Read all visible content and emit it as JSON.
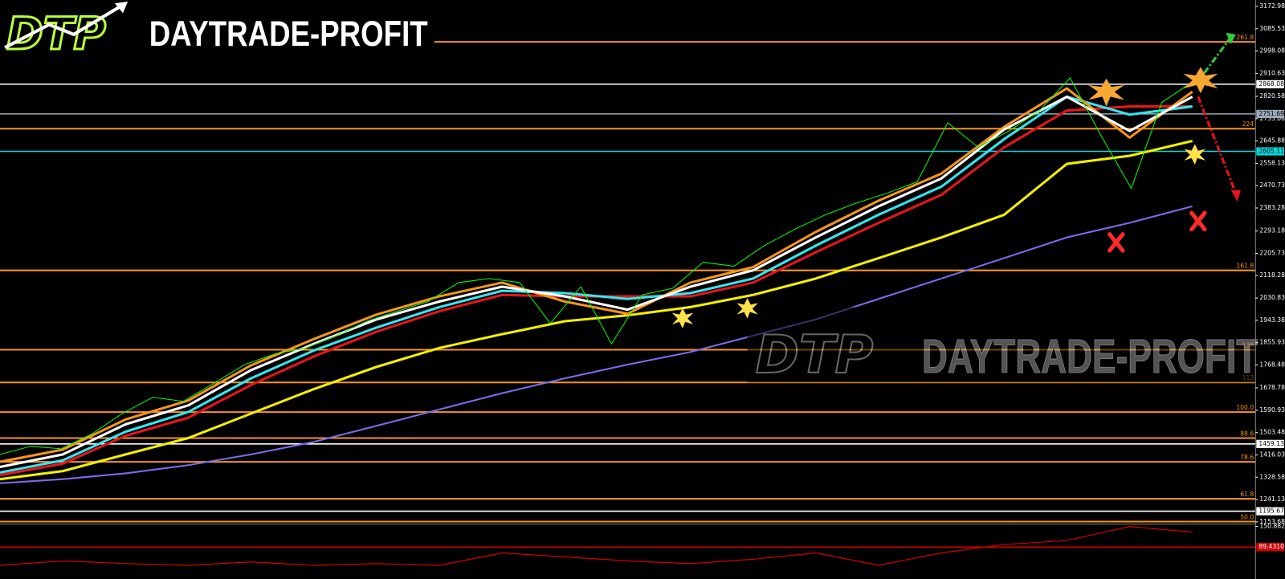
{
  "chart_data": {
    "type": "line",
    "logo": {
      "mark": "DTP",
      "text": "DAYTRADE-PROFIT"
    },
    "ylim": [
      1145,
      3198
    ],
    "yticks": [
      3172.98,
      3085.53,
      2998.08,
      2910.63,
      2820.58,
      2733.08,
      2645.88,
      2558.13,
      2470.73,
      2383.28,
      2293.18,
      2205.73,
      2118.28,
      2030.83,
      1943.38,
      1855.93,
      1768.48,
      1678.78,
      1590.93,
      1503.48,
      1416.03,
      1328.58,
      1241.13,
      1153.68
    ],
    "levels": [
      {
        "value": 2868.08,
        "color": "#ffffff"
      },
      {
        "value": 2751.69,
        "color": "#9aa9b8"
      },
      {
        "value": 2605.11,
        "color": "#00d8d8"
      },
      {
        "value": 1459.13,
        "color": "#ffffff"
      },
      {
        "value": 1195.67,
        "color": "#ffffff"
      }
    ],
    "fib_levels": [
      {
        "level": "261.8",
        "value": 3034
      },
      {
        "level": "224",
        "value": 2694
      },
      {
        "level": "161.8",
        "value": 2139
      },
      {
        "level": "138",
        "value": 1828
      },
      {
        "level": "113",
        "value": 1700
      },
      {
        "level": "100.0",
        "value": 1584
      },
      {
        "level": "88.6",
        "value": 1482
      },
      {
        "level": "78.6",
        "value": 1389
      },
      {
        "level": "61.8",
        "value": 1244
      },
      {
        "level": "50.0",
        "value": 1155
      }
    ],
    "fib_color": "#f7941d",
    "series": [
      {
        "color": "#00ff00",
        "width": 1,
        "values": [
          1418,
          1450,
          1440,
          1498,
          1578,
          1642,
          1626,
          1697,
          1770,
          1812,
          1835,
          1883,
          1940,
          1979,
          2017,
          2091,
          2107,
          2091,
          1931,
          2075,
          1851,
          2043,
          2069,
          2171,
          2155,
          2236,
          2300,
          2357,
          2402,
          2441,
          2486,
          2717,
          2621,
          2685,
          2765,
          2893,
          2669,
          2460,
          2797,
          2877
        ]
      },
      {
        "color": "#ffffff",
        "width": 3,
        "values": [
          1369,
          1418,
          1536,
          1610,
          1748,
          1851,
          1947,
          2017,
          2075,
          2037,
          1985,
          2075,
          2139,
          2268,
          2390,
          2499,
          2691,
          2819,
          2685,
          2819
        ]
      },
      {
        "color": "#f7941d",
        "width": 3,
        "values": [
          1389,
          1437,
          1555,
          1629,
          1767,
          1870,
          1966,
          2037,
          2091,
          2017,
          1969,
          2091,
          2152,
          2290,
          2412,
          2518,
          2701,
          2852,
          2659,
          2839
        ]
      },
      {
        "color": "#33e6f0",
        "width": 3,
        "values": [
          1347,
          1395,
          1507,
          1584,
          1716,
          1825,
          1915,
          1995,
          2059,
          2050,
          2027,
          2050,
          2107,
          2236,
          2357,
          2467,
          2653,
          2819,
          2749,
          2781
        ]
      },
      {
        "color": "#e8151b",
        "width": 3,
        "values": [
          1337,
          1382,
          1491,
          1562,
          1690,
          1802,
          1899,
          1979,
          2043,
          2037,
          2037,
          2037,
          2091,
          2210,
          2325,
          2435,
          2621,
          2765,
          2781,
          2781
        ]
      },
      {
        "color": "#f4f000",
        "width": 3,
        "values": [
          1321,
          1353,
          1418,
          1482,
          1578,
          1674,
          1761,
          1835,
          1889,
          1940,
          1963,
          1995,
          2043,
          2107,
          2187,
          2268,
          2357,
          2556,
          2588,
          2646
        ]
      },
      {
        "color": "#7b6cf0",
        "width": 2,
        "values": [
          1305,
          1321,
          1344,
          1376,
          1418,
          1467,
          1530,
          1594,
          1658,
          1716,
          1770,
          1819,
          1883,
          1947,
          2027,
          2107,
          2187,
          2268,
          2325,
          2390
        ]
      }
    ],
    "indicator": {
      "color": "#d40000",
      "ylim": [
        -6,
        158
      ],
      "yticks": [
        150.8821
      ],
      "level": {
        "value": 89.431,
        "label": "89.4310"
      },
      "values": [
        35,
        48,
        40,
        35,
        45,
        35,
        40,
        35,
        72,
        60,
        48,
        40,
        53,
        72,
        35,
        72,
        97,
        109,
        151,
        134
      ]
    }
  }
}
